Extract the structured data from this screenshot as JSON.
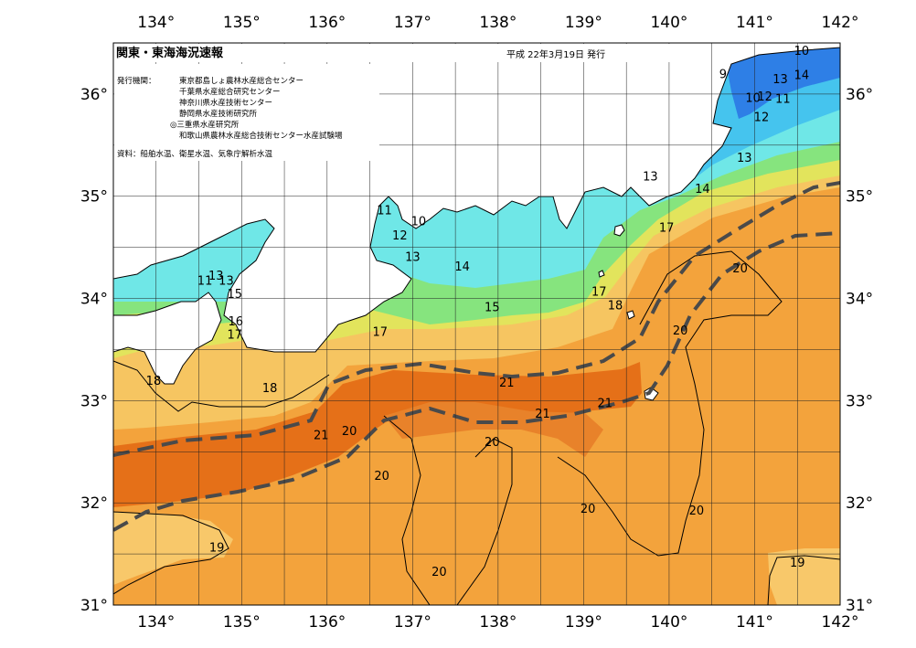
{
  "header": {
    "title": "関東・東海海況速報",
    "date": "平成 22年3月19日 発行"
  },
  "issuers": {
    "label": "発行機関：",
    "lines": [
      "東京都島しょ農林水産総合センター",
      "千葉県水産総合研究センター",
      "神奈川県水産技術センター",
      "静岡県水産技術研究所",
      "◎三重県水産研究所",
      "和歌山県農林水産総合技術センター水産試験場"
    ]
  },
  "source_note": "資料：船舶水温、衛星水温、気象庁解析水温",
  "axes": {
    "lon_labels": [
      "134°",
      "135°",
      "136°",
      "137°",
      "138°",
      "139°",
      "140°",
      "141°",
      "142°"
    ],
    "lat_labels": [
      "36°",
      "35°",
      "34°",
      "33°",
      "32°",
      "31°"
    ]
  },
  "isotherm_labels": [
    {
      "text": "10",
      "lon": 141.55,
      "lat": 36.43
    },
    {
      "text": "9",
      "lon": 140.63,
      "lat": 36.2
    },
    {
      "text": "13",
      "lon": 141.3,
      "lat": 36.15
    },
    {
      "text": "14",
      "lon": 141.55,
      "lat": 36.19
    },
    {
      "text": "10",
      "lon": 140.98,
      "lat": 35.97
    },
    {
      "text": "12",
      "lon": 141.12,
      "lat": 35.98
    },
    {
      "text": "11",
      "lon": 141.33,
      "lat": 35.96
    },
    {
      "text": "12",
      "lon": 141.08,
      "lat": 35.78
    },
    {
      "text": "13",
      "lon": 140.88,
      "lat": 35.38
    },
    {
      "text": "13",
      "lon": 139.78,
      "lat": 35.2
    },
    {
      "text": "14",
      "lon": 140.39,
      "lat": 35.08
    },
    {
      "text": "11",
      "lon": 136.67,
      "lat": 34.87
    },
    {
      "text": "10",
      "lon": 137.07,
      "lat": 34.76
    },
    {
      "text": "12",
      "lon": 136.85,
      "lat": 34.62
    },
    {
      "text": "13",
      "lon": 137.0,
      "lat": 34.41
    },
    {
      "text": "14",
      "lon": 137.58,
      "lat": 34.32
    },
    {
      "text": "17",
      "lon": 139.97,
      "lat": 34.7
    },
    {
      "text": "20",
      "lon": 140.83,
      "lat": 34.3
    },
    {
      "text": "13",
      "lon": 134.7,
      "lat": 34.23
    },
    {
      "text": "11",
      "lon": 134.57,
      "lat": 34.18
    },
    {
      "text": "13",
      "lon": 134.82,
      "lat": 34.18
    },
    {
      "text": "15",
      "lon": 134.92,
      "lat": 34.05
    },
    {
      "text": "17",
      "lon": 139.18,
      "lat": 34.07
    },
    {
      "text": "18",
      "lon": 139.37,
      "lat": 33.94
    },
    {
      "text": "15",
      "lon": 137.93,
      "lat": 33.92
    },
    {
      "text": "16",
      "lon": 134.93,
      "lat": 33.78
    },
    {
      "text": "17",
      "lon": 134.92,
      "lat": 33.65
    },
    {
      "text": "17",
      "lon": 136.62,
      "lat": 33.68
    },
    {
      "text": "20",
      "lon": 140.13,
      "lat": 33.69
    },
    {
      "text": "18",
      "lon": 133.97,
      "lat": 33.2
    },
    {
      "text": "18",
      "lon": 135.33,
      "lat": 33.13
    },
    {
      "text": "21",
      "lon": 138.1,
      "lat": 33.18
    },
    {
      "text": "21",
      "lon": 139.25,
      "lat": 32.98
    },
    {
      "text": "21",
      "lon": 138.52,
      "lat": 32.88
    },
    {
      "text": "21",
      "lon": 135.93,
      "lat": 32.67
    },
    {
      "text": "20",
      "lon": 136.26,
      "lat": 32.71
    },
    {
      "text": "20",
      "lon": 137.93,
      "lat": 32.6
    },
    {
      "text": "20",
      "lon": 136.64,
      "lat": 32.27
    },
    {
      "text": "20",
      "lon": 139.05,
      "lat": 31.95
    },
    {
      "text": "20",
      "lon": 140.32,
      "lat": 31.93
    },
    {
      "text": "19",
      "lon": 134.71,
      "lat": 31.57
    },
    {
      "text": "19",
      "lon": 141.5,
      "lat": 31.42
    },
    {
      "text": "20",
      "lon": 137.31,
      "lat": 31.33
    }
  ]
}
